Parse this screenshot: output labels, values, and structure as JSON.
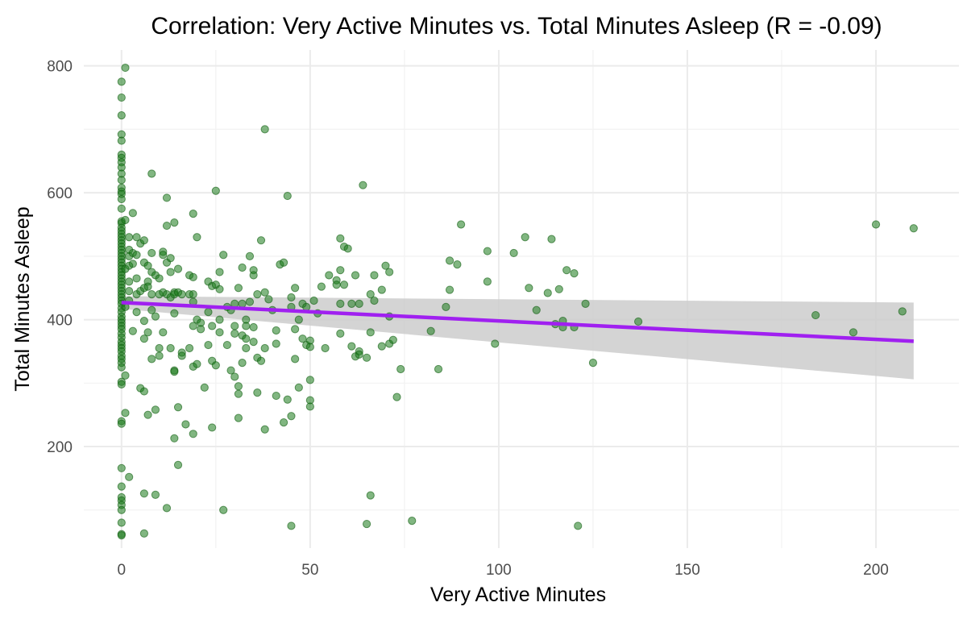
{
  "chart_data": {
    "type": "scatter",
    "title": "Correlation: Very Active Minutes vs. Total Minutes Asleep (R = -0.09)",
    "xlabel": "Very Active Minutes",
    "ylabel": "Total Minutes Asleep",
    "xlim": [
      -10,
      222
    ],
    "ylim": [
      40,
      825
    ],
    "x_ticks": [
      0,
      50,
      100,
      150,
      200
    ],
    "y_ticks": [
      200,
      400,
      600,
      800
    ],
    "grid": true,
    "legend": "none",
    "colors": {
      "points": "#1a7a1a",
      "points_stroke": "#0d5c0d",
      "trend_line": "#a020f0",
      "confidence_band": "#cccccc",
      "grid": "#ebebeb"
    },
    "trend_line": {
      "x": [
        0,
        210
      ],
      "y": [
        427,
        366
      ],
      "ci_upper": [
        437,
        427
      ],
      "ci_lower": [
        417,
        306
      ]
    },
    "points": [
      [
        0,
        775
      ],
      [
        0,
        750
      ],
      [
        0,
        722
      ],
      [
        0,
        692
      ],
      [
        0,
        682
      ],
      [
        0,
        660
      ],
      [
        0,
        655
      ],
      [
        0,
        648
      ],
      [
        0,
        640
      ],
      [
        0,
        630
      ],
      [
        0,
        620
      ],
      [
        0,
        608
      ],
      [
        0,
        602
      ],
      [
        0,
        598
      ],
      [
        0,
        590
      ],
      [
        0,
        575
      ],
      [
        0,
        555
      ],
      [
        0,
        552
      ],
      [
        0,
        545
      ],
      [
        0,
        540
      ],
      [
        0,
        535
      ],
      [
        0,
        530
      ],
      [
        0,
        525
      ],
      [
        0,
        520
      ],
      [
        0,
        515
      ],
      [
        0,
        510
      ],
      [
        0,
        505
      ],
      [
        0,
        500
      ],
      [
        0,
        495
      ],
      [
        0,
        490
      ],
      [
        0,
        485
      ],
      [
        0,
        480
      ],
      [
        0,
        475
      ],
      [
        0,
        470
      ],
      [
        0,
        465
      ],
      [
        0,
        460
      ],
      [
        0,
        455
      ],
      [
        0,
        450
      ],
      [
        0,
        445
      ],
      [
        0,
        440
      ],
      [
        0,
        435
      ],
      [
        0,
        430
      ],
      [
        0,
        425
      ],
      [
        0,
        418
      ],
      [
        0,
        412
      ],
      [
        0,
        405
      ],
      [
        0,
        400
      ],
      [
        0,
        395
      ],
      [
        0,
        390
      ],
      [
        0,
        385
      ],
      [
        0,
        378
      ],
      [
        0,
        372
      ],
      [
        0,
        365
      ],
      [
        0,
        360
      ],
      [
        0,
        355
      ],
      [
        0,
        350
      ],
      [
        0,
        343
      ],
      [
        0,
        338
      ],
      [
        0,
        332
      ],
      [
        0,
        325
      ],
      [
        0,
        302
      ],
      [
        0,
        298
      ],
      [
        0,
        240
      ],
      [
        0,
        236
      ],
      [
        0,
        166
      ],
      [
        0,
        137
      ],
      [
        0,
        120
      ],
      [
        0,
        115
      ],
      [
        0,
        108
      ],
      [
        0,
        100
      ],
      [
        0,
        80
      ],
      [
        0,
        62
      ],
      [
        0,
        60
      ],
      [
        1,
        797
      ],
      [
        1,
        557
      ],
      [
        1,
        480
      ],
      [
        1,
        420
      ],
      [
        1,
        312
      ],
      [
        1,
        253
      ],
      [
        2,
        530
      ],
      [
        2,
        510
      ],
      [
        2,
        500
      ],
      [
        2,
        485
      ],
      [
        2,
        460
      ],
      [
        2,
        445
      ],
      [
        2,
        430
      ],
      [
        2,
        152
      ],
      [
        3,
        568
      ],
      [
        3,
        505
      ],
      [
        3,
        488
      ],
      [
        3,
        382
      ],
      [
        4,
        530
      ],
      [
        4,
        502
      ],
      [
        4,
        465
      ],
      [
        4,
        440
      ],
      [
        4,
        412
      ],
      [
        5,
        520
      ],
      [
        5,
        445
      ],
      [
        5,
        292
      ],
      [
        6,
        525
      ],
      [
        6,
        490
      ],
      [
        6,
        450
      ],
      [
        6,
        398
      ],
      [
        6,
        370
      ],
      [
        6,
        287
      ],
      [
        6,
        126
      ],
      [
        6,
        63
      ],
      [
        7,
        485
      ],
      [
        7,
        460
      ],
      [
        7,
        452
      ],
      [
        7,
        380
      ],
      [
        7,
        250
      ],
      [
        8,
        630
      ],
      [
        8,
        505
      ],
      [
        8,
        475
      ],
      [
        8,
        440
      ],
      [
        8,
        415
      ],
      [
        8,
        338
      ],
      [
        9,
        470
      ],
      [
        9,
        405
      ],
      [
        9,
        258
      ],
      [
        9,
        124
      ],
      [
        10,
        465
      ],
      [
        10,
        440
      ],
      [
        10,
        355
      ],
      [
        10,
        343
      ],
      [
        11,
        507
      ],
      [
        11,
        502
      ],
      [
        11,
        443
      ],
      [
        11,
        380
      ],
      [
        12,
        592
      ],
      [
        12,
        548
      ],
      [
        12,
        490
      ],
      [
        12,
        440
      ],
      [
        12,
        103
      ],
      [
        13,
        497
      ],
      [
        13,
        475
      ],
      [
        13,
        435
      ],
      [
        13,
        355
      ],
      [
        14,
        553
      ],
      [
        14,
        443
      ],
      [
        14,
        440
      ],
      [
        14,
        410
      ],
      [
        14,
        320
      ],
      [
        14,
        318
      ],
      [
        14,
        213
      ],
      [
        15,
        480
      ],
      [
        15,
        443
      ],
      [
        15,
        262
      ],
      [
        15,
        171
      ],
      [
        16,
        440
      ],
      [
        16,
        348
      ],
      [
        16,
        343
      ],
      [
        17,
        235
      ],
      [
        18,
        470
      ],
      [
        18,
        440
      ],
      [
        18,
        355
      ],
      [
        19,
        567
      ],
      [
        19,
        467
      ],
      [
        19,
        440
      ],
      [
        19,
        428
      ],
      [
        19,
        390
      ],
      [
        19,
        326
      ],
      [
        19,
        220
      ],
      [
        20,
        530
      ],
      [
        20,
        400
      ],
      [
        20,
        330
      ],
      [
        21,
        395
      ],
      [
        21,
        385
      ],
      [
        22,
        293
      ],
      [
        23,
        460
      ],
      [
        23,
        412
      ],
      [
        23,
        360
      ],
      [
        24,
        453
      ],
      [
        24,
        390
      ],
      [
        24,
        335
      ],
      [
        24,
        230
      ],
      [
        25,
        603
      ],
      [
        25,
        455
      ],
      [
        25,
        328
      ],
      [
        26,
        475
      ],
      [
        26,
        448
      ],
      [
        26,
        400
      ],
      [
        26,
        380
      ],
      [
        27,
        502
      ],
      [
        27,
        100
      ],
      [
        28,
        420
      ],
      [
        28,
        360
      ],
      [
        29,
        415
      ],
      [
        29,
        320
      ],
      [
        30,
        425
      ],
      [
        30,
        390
      ],
      [
        30,
        378
      ],
      [
        30,
        310
      ],
      [
        31,
        450
      ],
      [
        31,
        295
      ],
      [
        31,
        283
      ],
      [
        31,
        245
      ],
      [
        32,
        482
      ],
      [
        32,
        425
      ],
      [
        32,
        375
      ],
      [
        32,
        332
      ],
      [
        33,
        400
      ],
      [
        33,
        390
      ],
      [
        33,
        370
      ],
      [
        33,
        355
      ],
      [
        34,
        500
      ],
      [
        34,
        428
      ],
      [
        35,
        478
      ],
      [
        35,
        470
      ],
      [
        35,
        388
      ],
      [
        35,
        365
      ],
      [
        36,
        440
      ],
      [
        36,
        340
      ],
      [
        36,
        285
      ],
      [
        37,
        525
      ],
      [
        37,
        335
      ],
      [
        38,
        700
      ],
      [
        38,
        443
      ],
      [
        38,
        355
      ],
      [
        38,
        227
      ],
      [
        39,
        432
      ],
      [
        40,
        415
      ],
      [
        41,
        383
      ],
      [
        41,
        362
      ],
      [
        41,
        280
      ],
      [
        42,
        487
      ],
      [
        43,
        490
      ],
      [
        43,
        238
      ],
      [
        44,
        595
      ],
      [
        44,
        274
      ],
      [
        45,
        435
      ],
      [
        45,
        420
      ],
      [
        45,
        248
      ],
      [
        45,
        75
      ],
      [
        46,
        450
      ],
      [
        46,
        385
      ],
      [
        46,
        338
      ],
      [
        47,
        400
      ],
      [
        47,
        293
      ],
      [
        48,
        425
      ],
      [
        48,
        370
      ],
      [
        49,
        420
      ],
      [
        49,
        360
      ],
      [
        50,
        367
      ],
      [
        50,
        357
      ],
      [
        50,
        305
      ],
      [
        50,
        273
      ],
      [
        50,
        263
      ],
      [
        51,
        430
      ],
      [
        52,
        410
      ],
      [
        53,
        452
      ],
      [
        54,
        355
      ],
      [
        55,
        470
      ],
      [
        57,
        462
      ],
      [
        57,
        455
      ],
      [
        58,
        528
      ],
      [
        58,
        478
      ],
      [
        58,
        425
      ],
      [
        58,
        378
      ],
      [
        59,
        515
      ],
      [
        59,
        455
      ],
      [
        60,
        512
      ],
      [
        61,
        425
      ],
      [
        61,
        358
      ],
      [
        62,
        470
      ],
      [
        62,
        342
      ],
      [
        63,
        425
      ],
      [
        63,
        350
      ],
      [
        63,
        345
      ],
      [
        64,
        612
      ],
      [
        65,
        340
      ],
      [
        65,
        78
      ],
      [
        66,
        440
      ],
      [
        66,
        380
      ],
      [
        66,
        123
      ],
      [
        67,
        470
      ],
      [
        67,
        430
      ],
      [
        69,
        447
      ],
      [
        69,
        358
      ],
      [
        70,
        485
      ],
      [
        71,
        475
      ],
      [
        71,
        405
      ],
      [
        71,
        362
      ],
      [
        72,
        368
      ],
      [
        73,
        278
      ],
      [
        74,
        322
      ],
      [
        77,
        83
      ],
      [
        82,
        382
      ],
      [
        84,
        322
      ],
      [
        86,
        420
      ],
      [
        87,
        493
      ],
      [
        87,
        447
      ],
      [
        89,
        487
      ],
      [
        90,
        550
      ],
      [
        97,
        508
      ],
      [
        97,
        460
      ],
      [
        99,
        362
      ],
      [
        104,
        505
      ],
      [
        107,
        530
      ],
      [
        108,
        450
      ],
      [
        110,
        415
      ],
      [
        113,
        442
      ],
      [
        114,
        527
      ],
      [
        115,
        393
      ],
      [
        116,
        448
      ],
      [
        117,
        398
      ],
      [
        117,
        388
      ],
      [
        118,
        478
      ],
      [
        120,
        473
      ],
      [
        120,
        388
      ],
      [
        121,
        75
      ],
      [
        123,
        425
      ],
      [
        125,
        332
      ],
      [
        137,
        397
      ],
      [
        184,
        407
      ],
      [
        194,
        380
      ],
      [
        200,
        550
      ],
      [
        207,
        413
      ],
      [
        210,
        544
      ]
    ]
  }
}
